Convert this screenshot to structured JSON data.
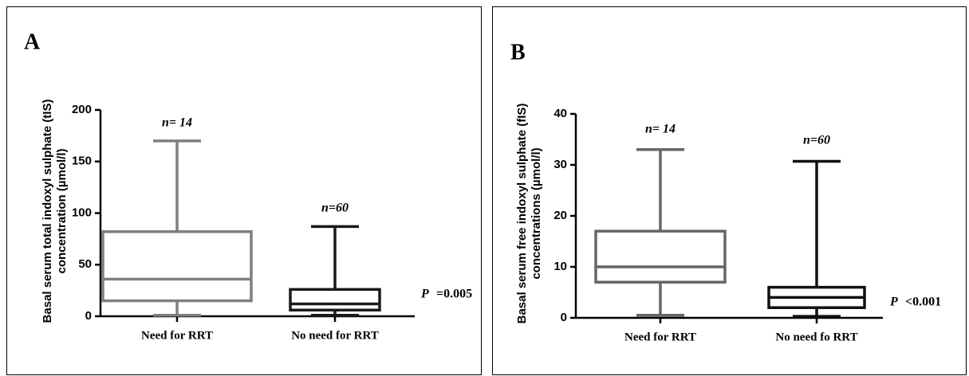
{
  "chart_data": [
    {
      "type": "box",
      "panel_label": "A",
      "ylabel": [
        "Basal serum total indoxyl sulphate (tIS)",
        "concentration (µmol/l)"
      ],
      "categories": [
        "Need for RRT",
        "No need for RRT"
      ],
      "colors": [
        "#7f7f7f",
        "#1a1a1a"
      ],
      "boxes": [
        {
          "min": 1,
          "q1": 15,
          "median": 36,
          "q3": 82,
          "max": 170
        },
        {
          "min": 1,
          "q1": 6,
          "median": 12,
          "q3": 26,
          "max": 87
        }
      ],
      "n_labels": [
        "n= 14",
        "n=60"
      ],
      "p_label": "P",
      "p_value": "=0.005",
      "ylim": [
        0,
        200
      ],
      "yticks": [
        0,
        50,
        100,
        150,
        200
      ]
    },
    {
      "type": "box",
      "panel_label": "B",
      "ylabel": [
        "Basal serum free indoxyl sulphate (fIS)",
        "concentrations (µmol/l)"
      ],
      "categories": [
        "Need for RRT",
        "No need fo RRT"
      ],
      "colors": [
        "#666666",
        "#111111"
      ],
      "boxes": [
        {
          "min": 0.5,
          "q1": 7,
          "median": 10,
          "q3": 17,
          "max": 33
        },
        {
          "min": 0.3,
          "q1": 2,
          "median": 4,
          "q3": 6,
          "max": 30.7
        }
      ],
      "n_labels": [
        "n= 14",
        "n=60"
      ],
      "p_label": "P",
      "p_value": "<0.001",
      "ylim": [
        0,
        40
      ],
      "yticks": [
        0,
        10,
        20,
        30,
        40
      ]
    }
  ]
}
